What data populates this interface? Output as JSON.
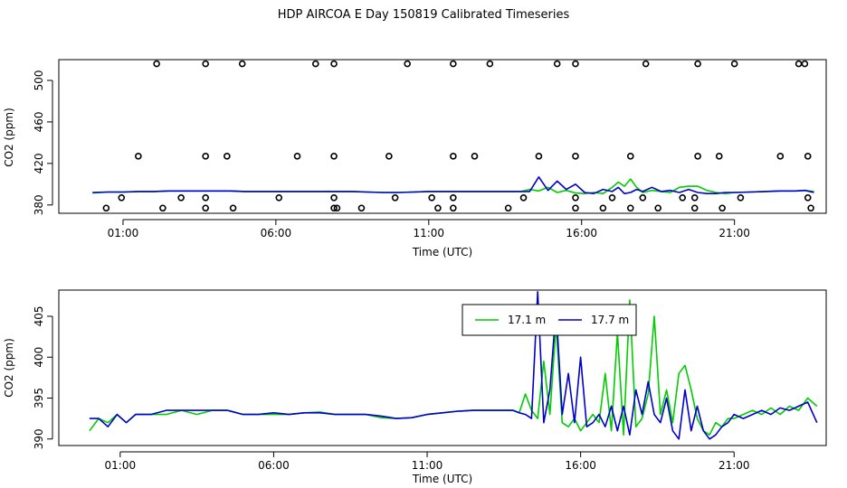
{
  "title": "HDP AIRCOA E  Day 150819  Calibrated Timeseries",
  "colors": {
    "series1": "#00cc00",
    "series2": "#0000cc",
    "axis": "#000000"
  },
  "chart_data": [
    {
      "type": "scatter",
      "panel": "top",
      "xlabel": "Time (UTC)",
      "ylabel": "CO2 (ppm)",
      "x_unit": "hour",
      "xlim": [
        -1.1,
        24.0
      ],
      "ylim": [
        372,
        520
      ],
      "x_ticks": [
        1,
        6,
        11,
        16,
        21
      ],
      "x_tick_labels": [
        "01:00",
        "06:00",
        "11:00",
        "16:00",
        "21:00"
      ],
      "y_ticks": [
        380,
        420,
        460,
        500
      ],
      "y_tick_labels": [
        "380",
        "420",
        "460",
        "500"
      ],
      "reference_points": {
        "levels": [
          377,
          387,
          427,
          516
        ],
        "x": [
          [
            0.45,
            2.3,
            3.7,
            4.6,
            7.9,
            8.0,
            8.8,
            11.3,
            11.8,
            13.6,
            15.8,
            16.7,
            17.6,
            18.5,
            19.7,
            20.6,
            23.5
          ],
          [
            0.95,
            2.9,
            3.7,
            6.1,
            7.9,
            9.9,
            11.1,
            11.8,
            14.1,
            15.8,
            17.0,
            18.0,
            19.3,
            19.7,
            21.2,
            23.4
          ],
          [
            1.5,
            3.7,
            4.4,
            6.7,
            7.9,
            9.7,
            11.8,
            12.5,
            14.6,
            15.8,
            17.6,
            19.8,
            20.5,
            22.5,
            23.4
          ],
          [
            2.1,
            3.7,
            4.9,
            7.3,
            7.9,
            10.3,
            11.8,
            13.0,
            15.2,
            15.8,
            18.1,
            19.8,
            21.0,
            23.1,
            23.3
          ]
        ]
      },
      "series": [
        {
          "name": "17.1 m",
          "color": "#00cc00",
          "x": [
            0,
            0.5,
            1,
            1.5,
            2,
            2.5,
            3,
            3.5,
            4,
            4.5,
            5,
            5.5,
            6,
            6.5,
            7,
            7.5,
            8,
            8.5,
            9,
            9.5,
            10,
            10.5,
            11,
            11.5,
            12,
            12.5,
            13,
            13.5,
            14,
            14.3,
            14.6,
            14.9,
            15.2,
            15.5,
            15.8,
            16.1,
            16.4,
            16.7,
            17,
            17.2,
            17.4,
            17.6,
            17.8,
            18,
            18.3,
            18.6,
            18.9,
            19.2,
            19.5,
            19.8,
            20.1,
            20.4,
            20.7,
            21,
            21.5,
            22,
            22.5,
            23,
            23.3,
            23.6
          ],
          "y": [
            391.5,
            392.5,
            392.5,
            393,
            393,
            393.5,
            393.5,
            393.5,
            393.5,
            393.5,
            393,
            393,
            393,
            393,
            393,
            393,
            393,
            393,
            392.5,
            392,
            392,
            392.5,
            393,
            393,
            393,
            393,
            393,
            393,
            393,
            395,
            393.5,
            397,
            392,
            394,
            391.5,
            391,
            392,
            391,
            397,
            402,
            398,
            405,
            397,
            392,
            394,
            393,
            392,
            397,
            398,
            398,
            394,
            392,
            391,
            392,
            392.5,
            393,
            393.5,
            393.5,
            394,
            393
          ]
        },
        {
          "name": "17.7 m",
          "color": "#0000cc",
          "x": [
            0,
            0.5,
            1,
            1.5,
            2,
            2.5,
            3,
            3.5,
            4,
            4.5,
            5,
            5.5,
            6,
            6.5,
            7,
            7.5,
            8,
            8.5,
            9,
            9.5,
            10,
            10.5,
            11,
            11.5,
            12,
            12.5,
            13,
            13.5,
            14,
            14.3,
            14.6,
            14.9,
            15.2,
            15.5,
            15.8,
            16.1,
            16.4,
            16.7,
            17,
            17.2,
            17.4,
            17.6,
            17.8,
            18,
            18.3,
            18.6,
            18.9,
            19.2,
            19.5,
            19.8,
            20.1,
            20.4,
            20.7,
            21,
            21.5,
            22,
            22.5,
            23,
            23.3,
            23.6
          ],
          "y": [
            392,
            392.5,
            392.5,
            393,
            393,
            393.5,
            393.5,
            393.5,
            393.5,
            393.5,
            393,
            393,
            393,
            393,
            393,
            393,
            393,
            393,
            392.5,
            392,
            392,
            392.5,
            393,
            393,
            393,
            393,
            393,
            393,
            393,
            393,
            407,
            394,
            403,
            395,
            400,
            392,
            391,
            395,
            393,
            397,
            391,
            392,
            395,
            393,
            397,
            393,
            394,
            392,
            395,
            392,
            391,
            391,
            392,
            392,
            392.5,
            393,
            393.5,
            393.5,
            394,
            392
          ]
        }
      ]
    },
    {
      "type": "line",
      "panel": "bottom",
      "xlabel": "Time (UTC)",
      "ylabel": "CO2 (ppm)",
      "x_unit": "hour",
      "xlim": [
        -1.0,
        24.0
      ],
      "ylim": [
        389.2,
        408.2
      ],
      "x_ticks": [
        1,
        6,
        11,
        16,
        21
      ],
      "x_tick_labels": [
        "01:00",
        "06:00",
        "11:00",
        "16:00",
        "21:00"
      ],
      "y_ticks": [
        390,
        395,
        400,
        405
      ],
      "y_tick_labels": [
        "390",
        "395",
        "400",
        "405"
      ],
      "legend_position": "top-center",
      "series": [
        {
          "name": "17.1 m",
          "color": "#00cc00",
          "x": [
            0,
            0.3,
            0.6,
            0.9,
            1.2,
            1.5,
            2,
            2.5,
            3,
            3.5,
            4,
            4.5,
            5,
            5.5,
            6,
            6.5,
            7,
            7.5,
            8,
            8.5,
            9,
            9.5,
            10,
            10.5,
            11,
            11.5,
            12,
            12.5,
            13,
            13.5,
            13.8,
            14.0,
            14.2,
            14.4,
            14.6,
            14.8,
            15.0,
            15.2,
            15.4,
            15.6,
            15.8,
            16.0,
            16.2,
            16.4,
            16.6,
            16.8,
            17.0,
            17.2,
            17.4,
            17.6,
            17.8,
            18.0,
            18.2,
            18.4,
            18.6,
            18.8,
            19.0,
            19.2,
            19.4,
            19.6,
            19.8,
            20.0,
            20.2,
            20.4,
            20.6,
            20.8,
            21.0,
            21.3,
            21.6,
            21.9,
            22.2,
            22.5,
            22.8,
            23.1,
            23.4,
            23.7
          ],
          "y": [
            391,
            392.5,
            392,
            393,
            392,
            393,
            393,
            393,
            393.5,
            393,
            393.5,
            393.5,
            393,
            393,
            393,
            393,
            393.2,
            393.3,
            393,
            393,
            393,
            392.6,
            392.5,
            392.6,
            393,
            393.2,
            393.4,
            393.5,
            393.5,
            393.5,
            393.5,
            393.2,
            395.5,
            393.5,
            392.5,
            399.5,
            393,
            404,
            392,
            391.5,
            392.5,
            391,
            392,
            393,
            392,
            398,
            391,
            403,
            390.5,
            407,
            391.5,
            392.5,
            395.5,
            405,
            393,
            396,
            392,
            398,
            399,
            396,
            392.5,
            391,
            390.5,
            392,
            391.5,
            392.5,
            392.5,
            393,
            393.5,
            393,
            393.8,
            393,
            394,
            393.5,
            395,
            394
          ]
        },
        {
          "name": "17.7 m",
          "color": "#0000cc",
          "x": [
            0,
            0.3,
            0.6,
            0.9,
            1.2,
            1.5,
            2,
            2.5,
            3,
            3.5,
            4,
            4.5,
            5,
            5.5,
            6,
            6.5,
            7,
            7.5,
            8,
            8.5,
            9,
            9.5,
            10,
            10.5,
            11,
            11.5,
            12,
            12.5,
            13,
            13.5,
            13.8,
            14.0,
            14.2,
            14.4,
            14.6,
            14.8,
            15.0,
            15.2,
            15.4,
            15.6,
            15.8,
            16.0,
            16.2,
            16.4,
            16.6,
            16.8,
            17.0,
            17.2,
            17.4,
            17.6,
            17.8,
            18.0,
            18.2,
            18.4,
            18.6,
            18.8,
            19.0,
            19.2,
            19.4,
            19.6,
            19.8,
            20.0,
            20.2,
            20.4,
            20.6,
            20.8,
            21.0,
            21.3,
            21.6,
            21.9,
            22.2,
            22.5,
            22.8,
            23.1,
            23.4,
            23.7
          ],
          "y": [
            392.5,
            392.5,
            391.5,
            393,
            392,
            393,
            393,
            393.5,
            393.5,
            393.5,
            393.5,
            393.5,
            393,
            393,
            393.2,
            393,
            393.2,
            393.2,
            393,
            393,
            393,
            392.8,
            392.5,
            392.6,
            393,
            393.2,
            393.4,
            393.5,
            393.5,
            393.5,
            393.5,
            393.2,
            393,
            392.5,
            408,
            392,
            396,
            406,
            393,
            398,
            392,
            400,
            391.5,
            392,
            393,
            391.5,
            394,
            391,
            394,
            390.5,
            396,
            393,
            397,
            393,
            392,
            395,
            391,
            390,
            396,
            391,
            394,
            391,
            390,
            390.5,
            391.5,
            392,
            393,
            392.5,
            393,
            393.5,
            393,
            393.8,
            393.5,
            394,
            394.5,
            392
          ]
        }
      ]
    }
  ]
}
